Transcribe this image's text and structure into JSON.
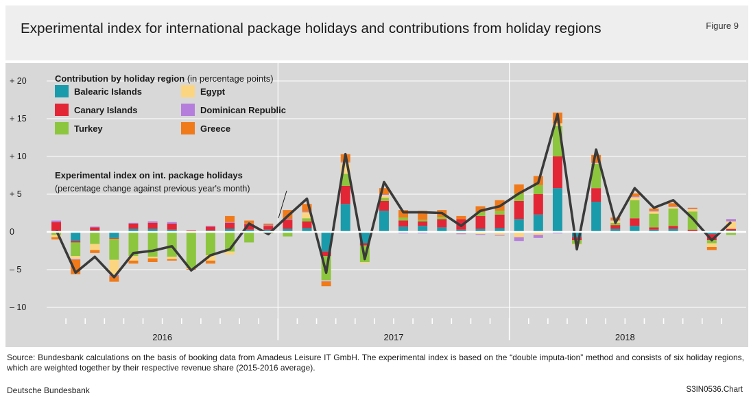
{
  "header": {
    "title": "Experimental index for international package holidays and contributions from holiday regions",
    "figure_label": "Figure 9"
  },
  "footer": {
    "source": "Source: Bundesbank calculations on the basis of booking data from Amadeus Leisure IT GmbH. The experimental index is based on the “double imputa-tion” method and consists of six holiday regions, which are weighted together by their respective revenue share (2015-2016 average).",
    "publisher": "Deutsche Bundesbank",
    "chart_id": "S3IN0536.Chart"
  },
  "colors": {
    "background": "#d8d8d8",
    "Balearic Islands": "#1a9bab",
    "Canary Islands": "#e32636",
    "Turkey": "#8cc63e",
    "Egypt": "#fcd581",
    "Dominican Republic": "#b57edc",
    "Greece": "#f07a1a",
    "index_line": "#3a3a3a"
  },
  "chart_data": {
    "type": "bar",
    "stacked": true,
    "legend_title": "Contribution by holiday region",
    "legend_title_unit": "(in percentage points)",
    "legend_placement": "top-left",
    "line_label": "Experimental index on int. package holidays",
    "line_label_sub": "(percentage change against previous year's month)",
    "ylim": [
      -10,
      20
    ],
    "yticks": [
      20,
      15,
      10,
      5,
      0,
      -5,
      -10
    ],
    "ytick_labels": [
      "+ 20",
      "+ 15",
      "+ 10",
      "+  5",
      "0",
      "–  5",
      "– 10"
    ],
    "grid": true,
    "year_labels": [
      "2016",
      "2017",
      "2018"
    ],
    "categories": [
      "2016-01",
      "2016-02",
      "2016-03",
      "2016-04",
      "2016-05",
      "2016-06",
      "2016-07",
      "2016-08",
      "2016-09",
      "2016-10",
      "2016-11",
      "2016-12",
      "2017-01",
      "2017-02",
      "2017-03",
      "2017-04",
      "2017-05",
      "2017-06",
      "2017-07",
      "2017-08",
      "2017-09",
      "2017-10",
      "2017-11",
      "2017-12",
      "2018-01",
      "2018-02",
      "2018-03",
      "2018-04",
      "2018-05",
      "2018-06",
      "2018-07",
      "2018-08",
      "2018-09",
      "2018-10",
      "2018-11",
      "2018-12"
    ],
    "series": [
      {
        "name": "Balearic Islands",
        "values": [
          0.1,
          -1.2,
          0.2,
          -0.8,
          0.4,
          0.4,
          0.3,
          0.1,
          0.2,
          0.4,
          0.3,
          0.3,
          0.4,
          0.5,
          -2.6,
          3.7,
          -1.5,
          2.8,
          0.7,
          0.8,
          0.6,
          0.3,
          0.4,
          0.5,
          1.7,
          2.3,
          5.8,
          -0.7,
          4.0,
          0.4,
          0.8,
          0.3,
          0.4,
          0.1,
          -0.3,
          0.2
        ]
      },
      {
        "name": "Canary Islands",
        "values": [
          1.2,
          -0.2,
          0.4,
          -0.1,
          0.7,
          0.8,
          0.8,
          0.1,
          0.5,
          0.8,
          0.7,
          0.5,
          1.2,
          0.9,
          -0.6,
          2.4,
          -0.3,
          1.3,
          0.8,
          0.6,
          1.1,
          1.4,
          1.7,
          1.8,
          2.4,
          2.7,
          4.2,
          -0.4,
          1.8,
          0.5,
          1.0,
          0.3,
          0.4,
          0.2,
          -0.8,
          0.2
        ]
      },
      {
        "name": "Turkey",
        "values": [
          -0.4,
          -1.8,
          -1.6,
          -2.8,
          -3.2,
          -3.3,
          -3.3,
          -4.8,
          -3.1,
          -2.6,
          -1.4,
          -0.2,
          -0.6,
          0.4,
          -3.2,
          1.6,
          -2.2,
          0.4,
          0.4,
          0.2,
          0.3,
          0.0,
          0.5,
          0.5,
          1.0,
          1.2,
          4.0,
          -0.5,
          3.2,
          0.3,
          2.4,
          1.8,
          2.3,
          2.4,
          -0.4,
          -0.4
        ]
      },
      {
        "name": "Egypt",
        "values": [
          -0.3,
          -0.4,
          -0.8,
          -2.0,
          -0.6,
          -0.2,
          -0.3,
          -0.1,
          -0.7,
          -0.4,
          0.0,
          0.0,
          0.0,
          0.8,
          -0.1,
          1.5,
          -0.1,
          0.4,
          -0.1,
          -0.1,
          0.0,
          -0.2,
          -0.3,
          -0.4,
          -0.7,
          -0.4,
          0.4,
          -0.1,
          0.1,
          0.3,
          0.4,
          0.3,
          0.2,
          0.3,
          -0.5,
          1.0
        ]
      },
      {
        "name": "Dominican Republic",
        "values": [
          0.2,
          -0.1,
          0.1,
          -0.2,
          0.1,
          0.2,
          0.2,
          0.0,
          0.1,
          0.1,
          0.1,
          0.1,
          0.1,
          0.1,
          -0.1,
          0.1,
          0.0,
          0.1,
          -0.1,
          -0.1,
          -0.1,
          -0.1,
          -0.1,
          -0.1,
          -0.5,
          -0.4,
          -0.2,
          0.0,
          0.1,
          0.1,
          0.1,
          0.1,
          0.1,
          0.1,
          0.1,
          0.3
        ]
      },
      {
        "name": "Greece",
        "values": [
          -0.3,
          -1.9,
          -0.4,
          -0.7,
          -0.4,
          -0.5,
          -0.2,
          -0.1,
          -0.4,
          0.8,
          0.4,
          0.2,
          1.2,
          1.0,
          -0.6,
          1.0,
          0.0,
          0.8,
          1.0,
          1.2,
          0.9,
          0.4,
          0.8,
          1.4,
          1.2,
          1.2,
          1.4,
          0.0,
          1.0,
          0.3,
          0.4,
          0.3,
          0.4,
          0.1,
          -0.4,
          0.0
        ]
      }
    ],
    "index_line": {
      "name": "Experimental index on int. package holidays",
      "values": [
        0.2,
        -5.4,
        -3.3,
        -6.0,
        -2.8,
        -2.5,
        -1.9,
        -5.1,
        -3.1,
        -2.3,
        1.1,
        -0.3,
        2.1,
        4.4,
        -5.4,
        10.3,
        -3.6,
        6.6,
        2.6,
        2.6,
        2.5,
        0.8,
        2.8,
        3.4,
        5.1,
        6.5,
        15.6,
        -2.3,
        10.9,
        1.2,
        5.8,
        3.2,
        4.2,
        1.8,
        -1.1,
        1.3
      ]
    }
  }
}
